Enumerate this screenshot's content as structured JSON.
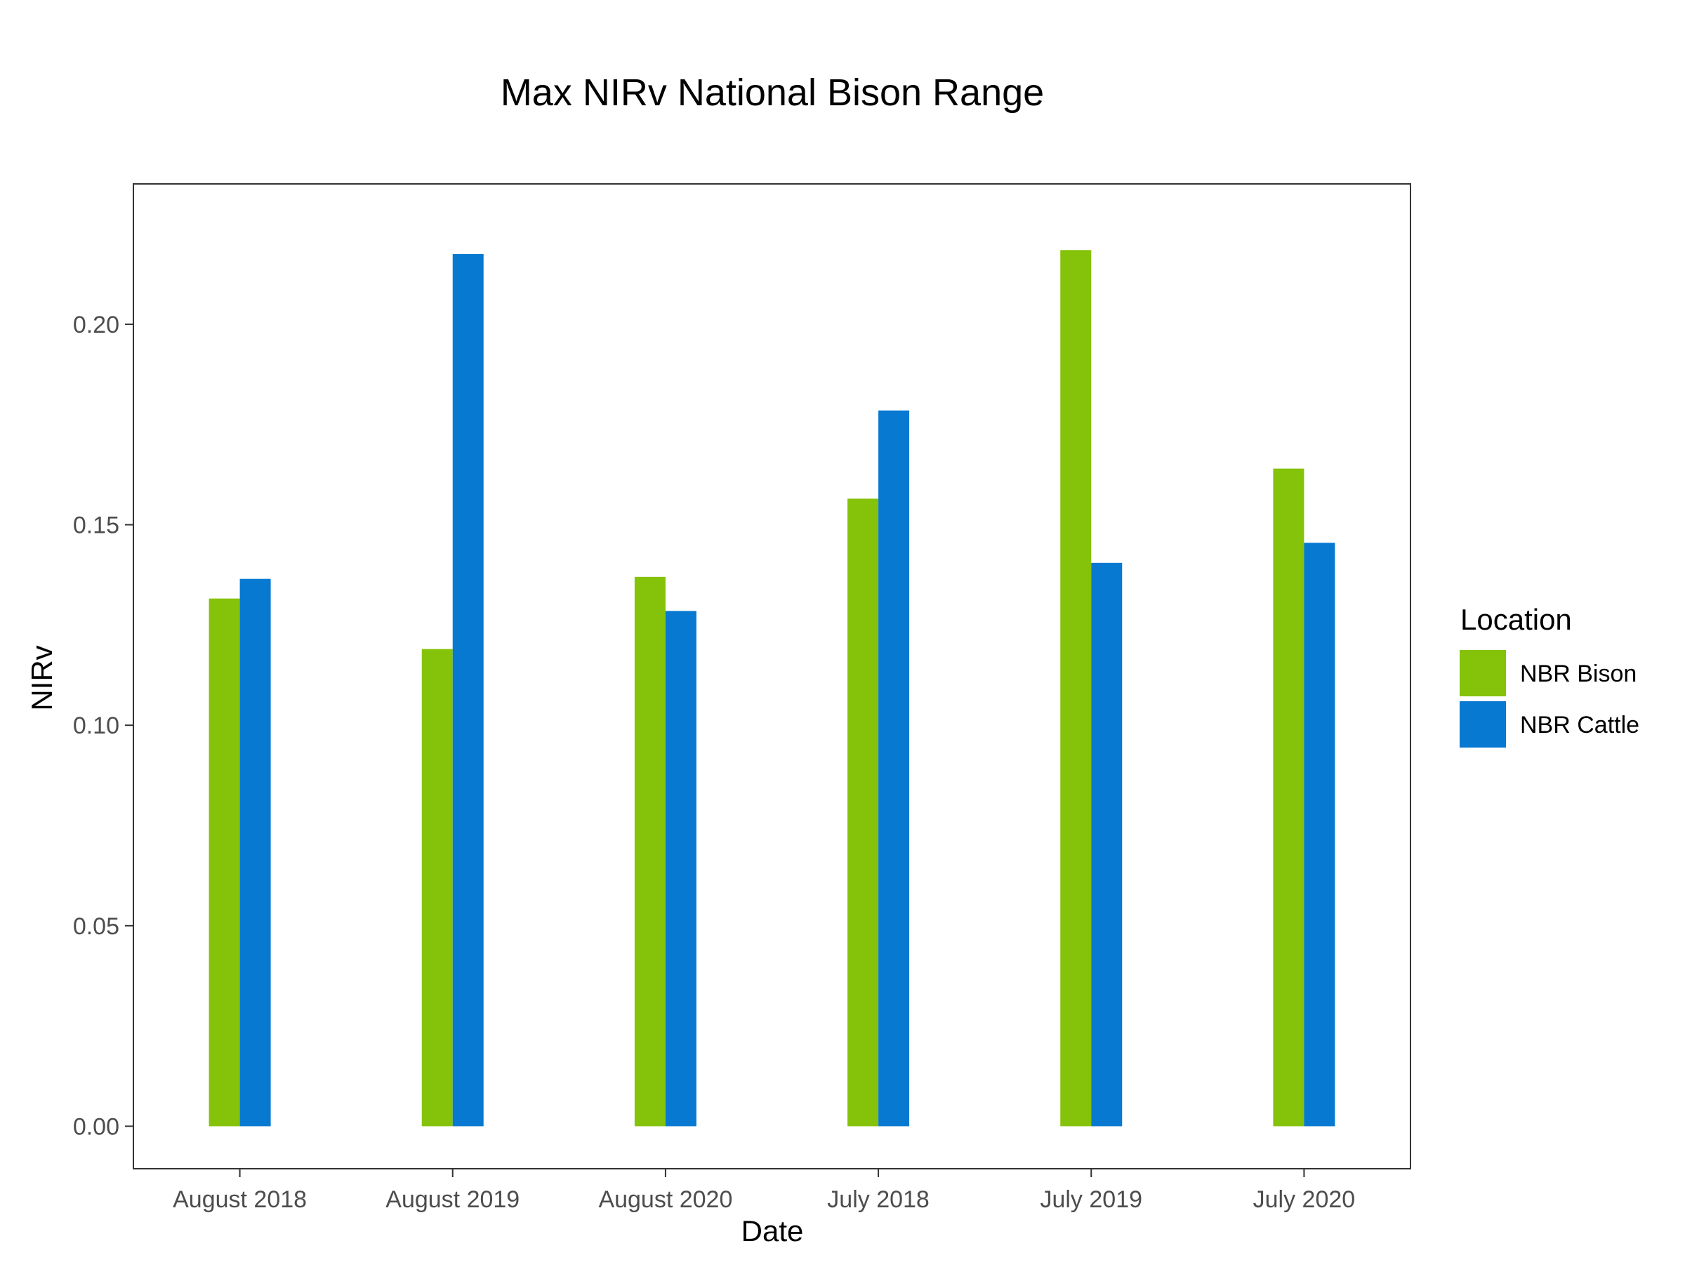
{
  "chart_data": {
    "type": "bar",
    "title": "Max NIRv National Bison Range",
    "xlabel": "Date",
    "ylabel": "NIRv",
    "categories": [
      "August 2018",
      "August 2019",
      "August 2020",
      "July 2018",
      "July 2019",
      "July 2020"
    ],
    "series": [
      {
        "name": "NBR Bison",
        "color": "#85C20A",
        "values": [
          0.1316,
          0.119,
          0.137,
          0.1565,
          0.2185,
          0.164
        ]
      },
      {
        "name": "NBR Cattle",
        "color": "#0779D1",
        "values": [
          0.1365,
          0.2175,
          0.1285,
          0.1785,
          0.1405,
          0.1455
        ]
      }
    ],
    "ylim": [
      -0.0106,
      0.235
    ],
    "yticks": [
      0.0,
      0.05,
      0.1,
      0.15,
      0.2
    ],
    "ytick_labels": [
      "0.00",
      "0.05",
      "0.10",
      "0.15",
      "0.20"
    ],
    "grid": false,
    "legend": {
      "title": "Location",
      "position": "right"
    }
  }
}
